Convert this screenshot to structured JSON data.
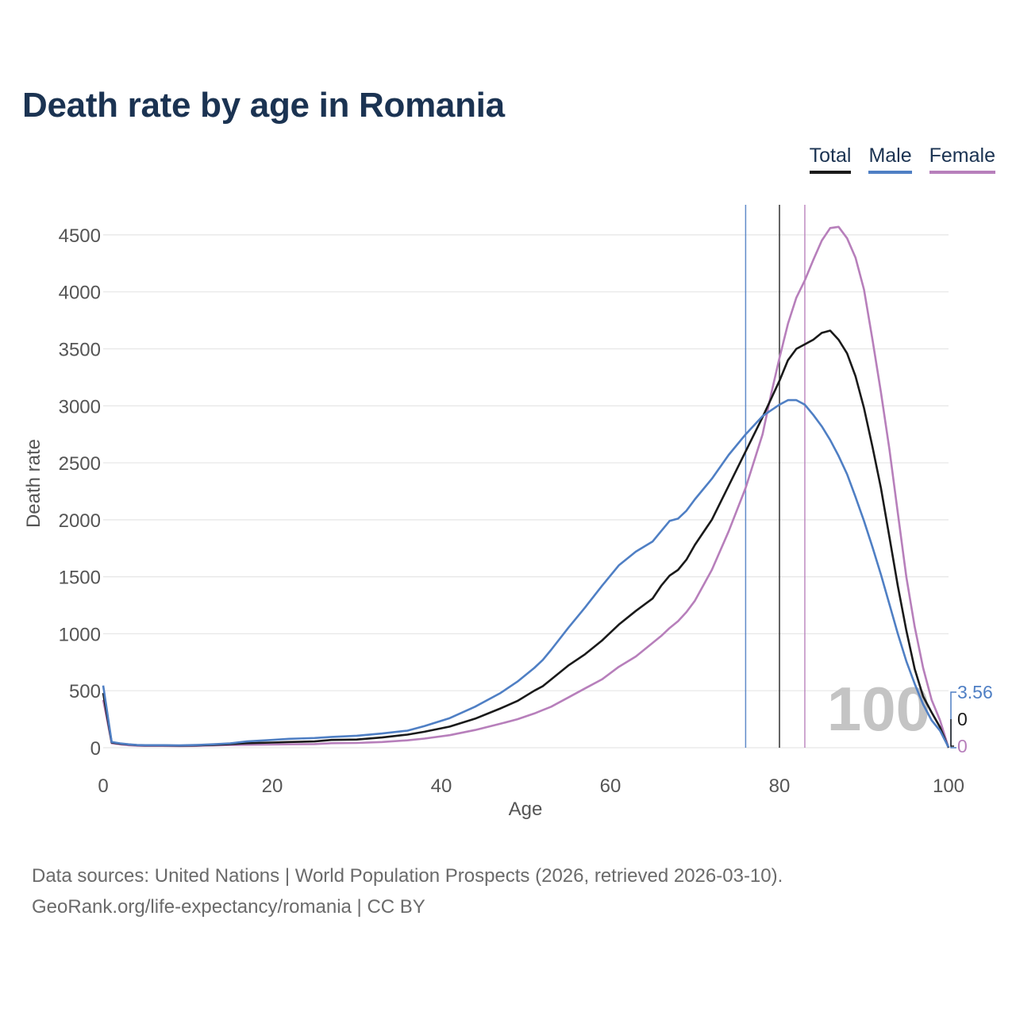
{
  "title": "Death rate by age in Romania",
  "legend": [
    {
      "label": "Total",
      "color": "#1a1a1a"
    },
    {
      "label": "Male",
      "color": "#4f7fc4"
    },
    {
      "label": "Female",
      "color": "#b77fbb"
    }
  ],
  "footer": {
    "line1": "Data sources: United Nations | World Population Prospects (2026, retrieved 2026-03-10).",
    "line2": "GeoRank.org/life-expectancy/romania | CC BY"
  },
  "chart_data": {
    "type": "line",
    "title": "Death rate by age in Romania",
    "xlabel": "Age",
    "ylabel": "Death rate",
    "xlim": [
      0,
      100
    ],
    "ylim": [
      0,
      4750
    ],
    "xticks": [
      0,
      20,
      40,
      60,
      80,
      100
    ],
    "yticks": [
      0,
      500,
      1000,
      1500,
      2000,
      2500,
      3000,
      3500,
      4000,
      4500
    ],
    "grid": true,
    "overlay_label": "100",
    "life_expectancy_markers": [
      {
        "series": "Male",
        "age": 76
      },
      {
        "series": "Total",
        "age": 80
      },
      {
        "series": "Female",
        "age": 83
      }
    ],
    "end_labels": [
      {
        "series": "Male",
        "text": "3.56"
      },
      {
        "series": "Total",
        "text": "0"
      },
      {
        "series": "Female",
        "text": "0"
      }
    ],
    "series": [
      {
        "name": "Total",
        "color": "#1a1a1a",
        "points": [
          [
            0,
            480
          ],
          [
            1,
            45
          ],
          [
            2,
            35
          ],
          [
            3,
            28
          ],
          [
            4,
            22
          ],
          [
            5,
            20
          ],
          [
            7,
            20
          ],
          [
            9,
            18
          ],
          [
            11,
            20
          ],
          [
            13,
            25
          ],
          [
            15,
            32
          ],
          [
            17,
            40
          ],
          [
            20,
            45
          ],
          [
            22,
            50
          ],
          [
            25,
            55
          ],
          [
            27,
            68
          ],
          [
            30,
            72
          ],
          [
            33,
            90
          ],
          [
            36,
            115
          ],
          [
            38,
            140
          ],
          [
            41,
            185
          ],
          [
            44,
            255
          ],
          [
            47,
            345
          ],
          [
            49,
            410
          ],
          [
            51,
            500
          ],
          [
            52,
            540
          ],
          [
            53,
            600
          ],
          [
            55,
            720
          ],
          [
            57,
            820
          ],
          [
            59,
            940
          ],
          [
            61,
            1080
          ],
          [
            63,
            1200
          ],
          [
            65,
            1310
          ],
          [
            66,
            1420
          ],
          [
            67,
            1510
          ],
          [
            68,
            1560
          ],
          [
            69,
            1650
          ],
          [
            70,
            1780
          ],
          [
            72,
            2000
          ],
          [
            74,
            2300
          ],
          [
            76,
            2600
          ],
          [
            78,
            2900
          ],
          [
            80,
            3220
          ],
          [
            81,
            3400
          ],
          [
            82,
            3500
          ],
          [
            84,
            3580
          ],
          [
            85,
            3640
          ],
          [
            86,
            3660
          ],
          [
            87,
            3580
          ],
          [
            88,
            3460
          ],
          [
            89,
            3260
          ],
          [
            90,
            2980
          ],
          [
            91,
            2640
          ],
          [
            92,
            2280
          ],
          [
            93,
            1850
          ],
          [
            94,
            1420
          ],
          [
            95,
            1030
          ],
          [
            96,
            690
          ],
          [
            97,
            450
          ],
          [
            98,
            310
          ],
          [
            99,
            180
          ],
          [
            100,
            0
          ]
        ]
      },
      {
        "name": "Male",
        "color": "#4f7fc4",
        "points": [
          [
            0,
            545
          ],
          [
            1,
            50
          ],
          [
            2,
            38
          ],
          [
            3,
            30
          ],
          [
            4,
            24
          ],
          [
            5,
            22
          ],
          [
            7,
            22
          ],
          [
            9,
            20
          ],
          [
            11,
            24
          ],
          [
            13,
            30
          ],
          [
            15,
            38
          ],
          [
            17,
            55
          ],
          [
            20,
            68
          ],
          [
            22,
            78
          ],
          [
            25,
            85
          ],
          [
            27,
            95
          ],
          [
            30,
            105
          ],
          [
            33,
            125
          ],
          [
            36,
            150
          ],
          [
            38,
            190
          ],
          [
            41,
            260
          ],
          [
            44,
            360
          ],
          [
            47,
            480
          ],
          [
            49,
            580
          ],
          [
            51,
            700
          ],
          [
            52,
            770
          ],
          [
            53,
            860
          ],
          [
            55,
            1050
          ],
          [
            57,
            1230
          ],
          [
            59,
            1420
          ],
          [
            61,
            1600
          ],
          [
            63,
            1720
          ],
          [
            65,
            1810
          ],
          [
            66,
            1900
          ],
          [
            67,
            1990
          ],
          [
            68,
            2010
          ],
          [
            69,
            2080
          ],
          [
            70,
            2180
          ],
          [
            72,
            2360
          ],
          [
            74,
            2570
          ],
          [
            76,
            2750
          ],
          [
            78,
            2910
          ],
          [
            80,
            3010
          ],
          [
            81,
            3050
          ],
          [
            82,
            3050
          ],
          [
            83,
            3010
          ],
          [
            84,
            2920
          ],
          [
            85,
            2820
          ],
          [
            86,
            2700
          ],
          [
            87,
            2560
          ],
          [
            88,
            2400
          ],
          [
            89,
            2200
          ],
          [
            90,
            1990
          ],
          [
            91,
            1760
          ],
          [
            92,
            1520
          ],
          [
            93,
            1260
          ],
          [
            94,
            1000
          ],
          [
            95,
            760
          ],
          [
            96,
            560
          ],
          [
            97,
            380
          ],
          [
            98,
            240
          ],
          [
            99,
            150
          ],
          [
            100,
            4
          ]
        ]
      },
      {
        "name": "Female",
        "color": "#b77fbb",
        "points": [
          [
            0,
            420
          ],
          [
            1,
            40
          ],
          [
            2,
            30
          ],
          [
            3,
            22
          ],
          [
            4,
            18
          ],
          [
            5,
            16
          ],
          [
            7,
            16
          ],
          [
            9,
            14
          ],
          [
            11,
            16
          ],
          [
            13,
            20
          ],
          [
            15,
            24
          ],
          [
            17,
            26
          ],
          [
            20,
            28
          ],
          [
            22,
            30
          ],
          [
            25,
            32
          ],
          [
            27,
            40
          ],
          [
            30,
            42
          ],
          [
            33,
            50
          ],
          [
            36,
            65
          ],
          [
            38,
            80
          ],
          [
            41,
            110
          ],
          [
            44,
            155
          ],
          [
            47,
            210
          ],
          [
            49,
            250
          ],
          [
            51,
            300
          ],
          [
            52,
            330
          ],
          [
            53,
            360
          ],
          [
            55,
            440
          ],
          [
            57,
            520
          ],
          [
            59,
            600
          ],
          [
            61,
            710
          ],
          [
            63,
            800
          ],
          [
            65,
            920
          ],
          [
            66,
            980
          ],
          [
            67,
            1050
          ],
          [
            68,
            1110
          ],
          [
            69,
            1190
          ],
          [
            70,
            1290
          ],
          [
            72,
            1560
          ],
          [
            74,
            1900
          ],
          [
            76,
            2280
          ],
          [
            78,
            2750
          ],
          [
            79,
            3100
          ],
          [
            80,
            3420
          ],
          [
            81,
            3720
          ],
          [
            82,
            3950
          ],
          [
            83,
            4100
          ],
          [
            84,
            4280
          ],
          [
            85,
            4450
          ],
          [
            86,
            4560
          ],
          [
            87,
            4570
          ],
          [
            88,
            4470
          ],
          [
            89,
            4300
          ],
          [
            90,
            4020
          ],
          [
            91,
            3580
          ],
          [
            92,
            3120
          ],
          [
            93,
            2620
          ],
          [
            94,
            2060
          ],
          [
            95,
            1500
          ],
          [
            96,
            1060
          ],
          [
            97,
            700
          ],
          [
            98,
            420
          ],
          [
            99,
            240
          ],
          [
            100,
            0
          ]
        ]
      }
    ]
  }
}
